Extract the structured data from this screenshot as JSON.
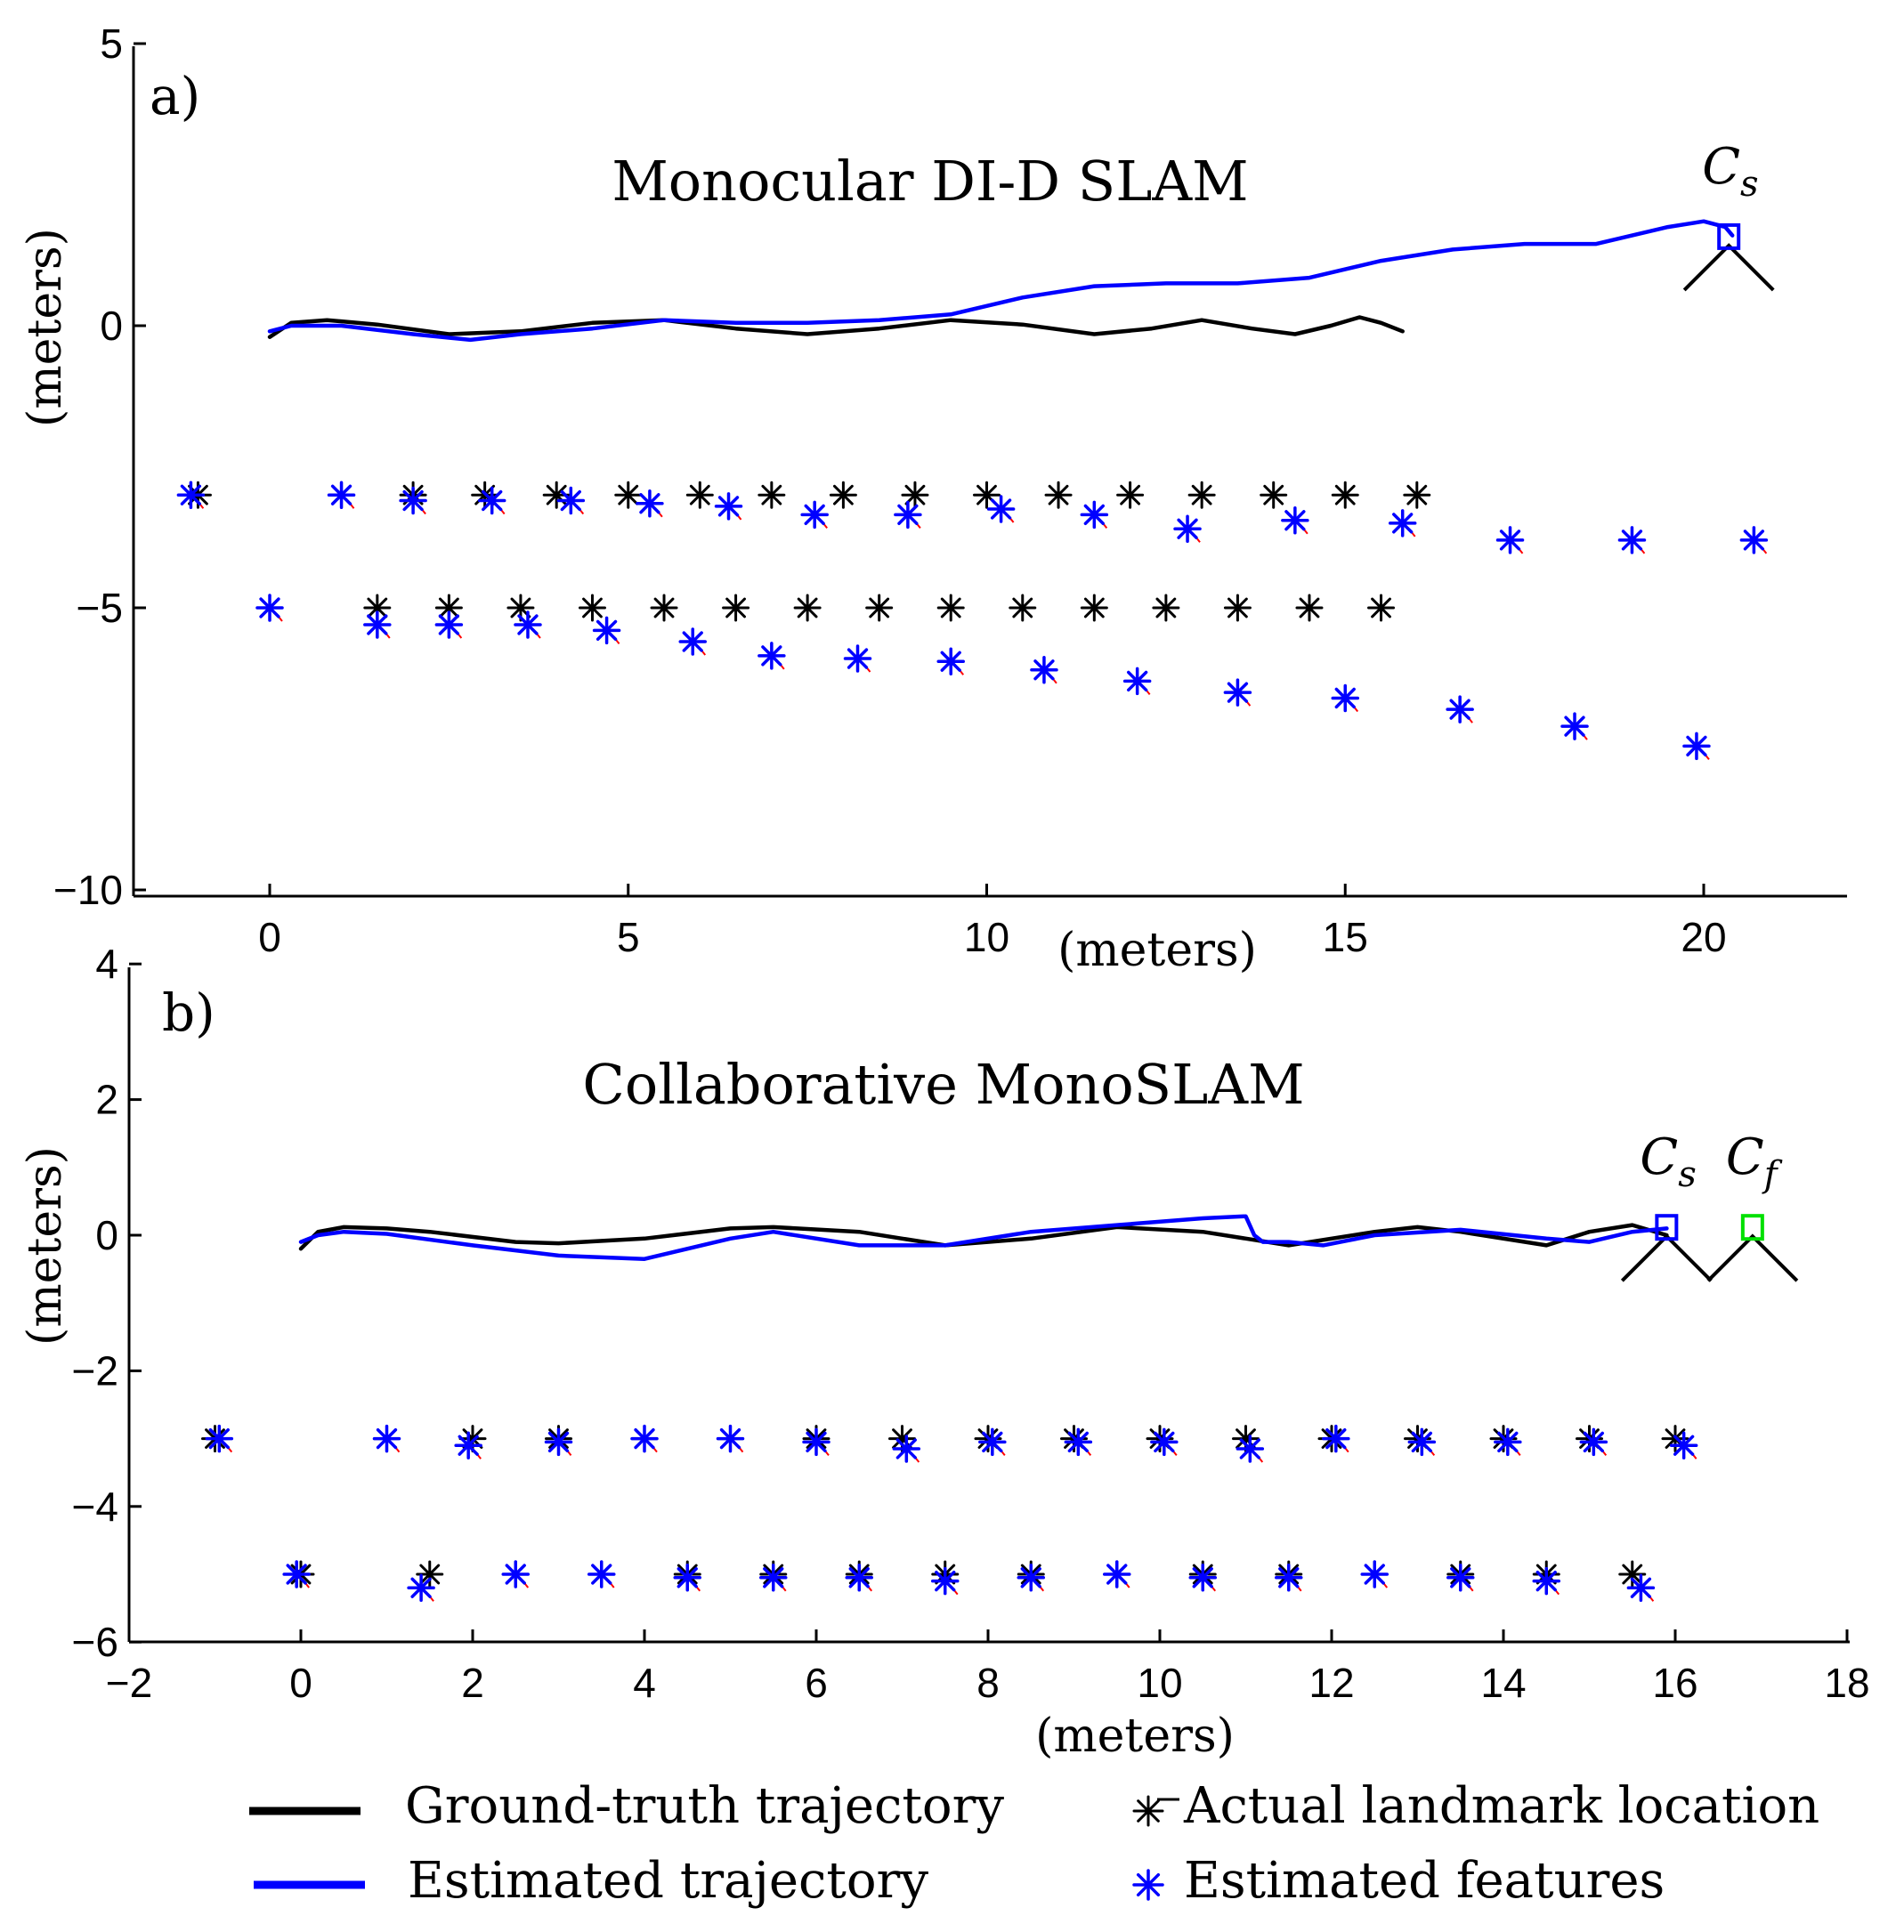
{
  "legend": {
    "ground_truth": "Ground-truth trajectory",
    "estimated_trajectory": "Estimated trajectory",
    "actual_landmark": "Actual landmark location",
    "estimated_features": "Estimated features"
  },
  "colors": {
    "ground_truth": "#000000",
    "estimated": "#0000ff",
    "camera_start": "#0000ff",
    "camera_final": "#00e000",
    "error_marker": "#ff0000"
  },
  "chart_data": [
    {
      "type": "scatter",
      "panel_label": "a)",
      "title": "Monocular DI-D SLAM",
      "xlabel": "(meters)",
      "ylabel": "(meters)",
      "xlim": [
        -2,
        22
      ],
      "ylim": [
        -10,
        5
      ],
      "xticks": [
        0,
        5,
        10,
        15,
        20
      ],
      "yticks": [
        -10,
        -5,
        0,
        5
      ],
      "grid": false,
      "series": [
        {
          "name": "Ground-truth trajectory",
          "kind": "line",
          "color": "#000000",
          "x": [
            0,
            0.3,
            0.8,
            1.5,
            2.5,
            3.5,
            4.5,
            5.5,
            6.5,
            7.5,
            8.5,
            9.5,
            10.5,
            11.5,
            12.3,
            13.0,
            13.7,
            14.3,
            14.8,
            15.2,
            15.5,
            15.8
          ],
          "y": [
            -0.2,
            0.05,
            0.1,
            0.02,
            -0.15,
            -0.1,
            0.05,
            0.1,
            -0.05,
            -0.15,
            -0.05,
            0.1,
            0.02,
            -0.15,
            -0.05,
            0.1,
            -0.05,
            -0.15,
            0.0,
            0.15,
            0.05,
            -0.1
          ]
        },
        {
          "name": "Estimated trajectory",
          "kind": "line",
          "color": "#0000ff",
          "x": [
            0,
            0.3,
            1.0,
            2.0,
            2.8,
            3.5,
            4.5,
            5.5,
            6.5,
            7.5,
            8.5,
            9.5,
            10.5,
            11.5,
            12.5,
            13.5,
            14.5,
            15.5,
            16.5,
            17.5,
            18.5,
            19.5,
            20.0,
            20.3,
            20.4
          ],
          "y": [
            -0.1,
            0.0,
            0.0,
            -0.15,
            -0.25,
            -0.15,
            -0.05,
            0.1,
            0.05,
            0.05,
            0.1,
            0.2,
            0.5,
            0.7,
            0.75,
            0.75,
            0.85,
            1.15,
            1.35,
            1.45,
            1.45,
            1.75,
            1.85,
            1.75,
            1.6
          ]
        },
        {
          "name": "Actual landmark location",
          "kind": "marker",
          "color": "#000000",
          "points": [
            [
              -1,
              -3
            ],
            [
              1,
              -3
            ],
            [
              2,
              -3
            ],
            [
              3,
              -3
            ],
            [
              4,
              -3
            ],
            [
              5,
              -3
            ],
            [
              6,
              -3
            ],
            [
              7,
              -3
            ],
            [
              8,
              -3
            ],
            [
              9,
              -3
            ],
            [
              10,
              -3
            ],
            [
              11,
              -3
            ],
            [
              12,
              -3
            ],
            [
              13,
              -3
            ],
            [
              14,
              -3
            ],
            [
              15,
              -3
            ],
            [
              16,
              -3
            ],
            [
              0,
              -5
            ],
            [
              1.5,
              -5
            ],
            [
              2.5,
              -5
            ],
            [
              3.5,
              -5
            ],
            [
              4.5,
              -5
            ],
            [
              5.5,
              -5
            ],
            [
              6.5,
              -5
            ],
            [
              7.5,
              -5
            ],
            [
              8.5,
              -5
            ],
            [
              9.5,
              -5
            ],
            [
              10.5,
              -5
            ],
            [
              11.5,
              -5
            ],
            [
              12.5,
              -5
            ],
            [
              13.5,
              -5
            ],
            [
              14.5,
              -5
            ],
            [
              15.5,
              -5
            ]
          ]
        },
        {
          "name": "Estimated features",
          "kind": "marker",
          "color": "#0000ff",
          "points": [
            [
              -1.1,
              -3.0
            ],
            [
              1.0,
              -3.0
            ],
            [
              2.0,
              -3.1
            ],
            [
              3.1,
              -3.1
            ],
            [
              4.2,
              -3.1
            ],
            [
              5.3,
              -3.15
            ],
            [
              6.4,
              -3.2
            ],
            [
              7.6,
              -3.35
            ],
            [
              8.9,
              -3.35
            ],
            [
              10.2,
              -3.25
            ],
            [
              11.5,
              -3.35
            ],
            [
              12.8,
              -3.6
            ],
            [
              14.3,
              -3.45
            ],
            [
              15.8,
              -3.5
            ],
            [
              17.3,
              -3.8
            ],
            [
              19.0,
              -3.8
            ],
            [
              20.7,
              -3.8
            ],
            [
              0.0,
              -5.0
            ],
            [
              1.5,
              -5.3
            ],
            [
              2.5,
              -5.3
            ],
            [
              3.6,
              -5.3
            ],
            [
              4.7,
              -5.4
            ],
            [
              5.9,
              -5.6
            ],
            [
              7.0,
              -5.85
            ],
            [
              8.2,
              -5.9
            ],
            [
              9.5,
              -5.95
            ],
            [
              10.8,
              -6.1
            ],
            [
              12.1,
              -6.3
            ],
            [
              13.5,
              -6.5
            ],
            [
              15.0,
              -6.6
            ],
            [
              16.6,
              -6.8
            ],
            [
              18.2,
              -7.1
            ],
            [
              19.9,
              -7.45
            ]
          ]
        }
      ],
      "cameras": [
        {
          "label": "C",
          "subscript": "s",
          "x": 20.35,
          "y": 1.5,
          "color": "#0000ff"
        }
      ]
    },
    {
      "type": "scatter",
      "panel_label": "b)",
      "title": "Collaborative MonoSLAM",
      "xlabel": "(meters)",
      "ylabel": "(meters)",
      "xlim": [
        -2,
        18
      ],
      "ylim": [
        -6,
        4
      ],
      "xticks": [
        -2,
        0,
        2,
        4,
        6,
        8,
        10,
        12,
        14,
        16,
        18
      ],
      "xtick_labels": [
        "−2",
        "0",
        "2",
        "4",
        "6",
        "8",
        "10",
        "12",
        "14",
        "16",
        "18"
      ],
      "yticks": [
        -6,
        -4,
        -2,
        0,
        2,
        4
      ],
      "ytick_labels": [
        "−6",
        "−4",
        "−2",
        "0",
        "2",
        "4"
      ],
      "grid": false,
      "series": [
        {
          "name": "Ground-truth trajectory",
          "kind": "line",
          "color": "#000000",
          "x": [
            0,
            0.2,
            0.5,
            1.0,
            1.5,
            2.5,
            3.0,
            4.0,
            5.0,
            5.5,
            6.5,
            7.5,
            8.5,
            9.5,
            10.5,
            11.5,
            12.5,
            13.0,
            13.5,
            14.5,
            15.0,
            15.5,
            15.9
          ],
          "y": [
            -0.2,
            0.05,
            0.12,
            0.1,
            0.05,
            -0.1,
            -0.12,
            -0.05,
            0.1,
            0.12,
            0.05,
            -0.15,
            -0.05,
            0.12,
            0.05,
            -0.15,
            0.05,
            0.12,
            0.05,
            -0.15,
            0.05,
            0.15,
            0.0
          ]
        },
        {
          "name": "Estimated trajectory",
          "kind": "line",
          "color": "#0000ff",
          "x": [
            0,
            0.2,
            0.5,
            1.0,
            2.0,
            3.0,
            4.0,
            5.0,
            5.5,
            6.5,
            7.5,
            8.5,
            9.5,
            10.5,
            11.0,
            11.1,
            11.2,
            11.5,
            11.9,
            12.5,
            13.5,
            14.5,
            15.0,
            15.5,
            15.9
          ],
          "y": [
            -0.1,
            0.0,
            0.05,
            0.02,
            -0.15,
            -0.3,
            -0.35,
            -0.05,
            0.05,
            -0.15,
            -0.15,
            0.05,
            0.15,
            0.25,
            0.28,
            0.0,
            -0.1,
            -0.1,
            -0.15,
            0.0,
            0.08,
            -0.05,
            -0.1,
            0.05,
            0.1
          ]
        },
        {
          "name": "Actual landmark location",
          "kind": "marker",
          "color": "#000000",
          "points": [
            [
              -1,
              -3
            ],
            [
              1,
              -3
            ],
            [
              2,
              -3
            ],
            [
              3,
              -3
            ],
            [
              4,
              -3
            ],
            [
              5,
              -3
            ],
            [
              6,
              -3
            ],
            [
              7,
              -3
            ],
            [
              8,
              -3
            ],
            [
              9,
              -3
            ],
            [
              10,
              -3
            ],
            [
              11,
              -3
            ],
            [
              12,
              -3
            ],
            [
              13,
              -3
            ],
            [
              14,
              -3
            ],
            [
              15,
              -3
            ],
            [
              16,
              -3
            ],
            [
              0,
              -5
            ],
            [
              1.5,
              -5
            ],
            [
              2.5,
              -5
            ],
            [
              3.5,
              -5
            ],
            [
              4.5,
              -5
            ],
            [
              5.5,
              -5
            ],
            [
              6.5,
              -5
            ],
            [
              7.5,
              -5
            ],
            [
              8.5,
              -5
            ],
            [
              9.5,
              -5
            ],
            [
              10.5,
              -5
            ],
            [
              11.5,
              -5
            ],
            [
              12.5,
              -5
            ],
            [
              13.5,
              -5
            ],
            [
              14.5,
              -5
            ],
            [
              15.5,
              -5
            ]
          ]
        },
        {
          "name": "Estimated features",
          "kind": "marker",
          "color": "#0000ff",
          "points": [
            [
              -0.95,
              -3.0
            ],
            [
              1.0,
              -3.0
            ],
            [
              1.95,
              -3.1
            ],
            [
              3.0,
              -3.05
            ],
            [
              4.0,
              -3.0
            ],
            [
              5.0,
              -3.0
            ],
            [
              6.0,
              -3.05
            ],
            [
              7.05,
              -3.15
            ],
            [
              8.05,
              -3.05
            ],
            [
              9.05,
              -3.05
            ],
            [
              10.05,
              -3.05
            ],
            [
              11.05,
              -3.15
            ],
            [
              12.05,
              -3.0
            ],
            [
              13.05,
              -3.05
            ],
            [
              14.05,
              -3.05
            ],
            [
              15.05,
              -3.05
            ],
            [
              16.1,
              -3.1
            ],
            [
              -0.05,
              -5.0
            ],
            [
              1.4,
              -5.2
            ],
            [
              2.5,
              -5.0
            ],
            [
              3.5,
              -5.0
            ],
            [
              4.5,
              -5.05
            ],
            [
              5.5,
              -5.05
            ],
            [
              6.5,
              -5.05
            ],
            [
              7.5,
              -5.1
            ],
            [
              8.5,
              -5.05
            ],
            [
              9.5,
              -5.0
            ],
            [
              10.5,
              -5.05
            ],
            [
              11.5,
              -5.05
            ],
            [
              12.5,
              -5.0
            ],
            [
              13.5,
              -5.05
            ],
            [
              14.5,
              -5.1
            ],
            [
              15.6,
              -5.2
            ]
          ]
        }
      ],
      "cameras": [
        {
          "label": "C",
          "subscript": "s",
          "x": 15.9,
          "y": 0.05,
          "color": "#0000ff"
        },
        {
          "label": "C",
          "subscript": "f",
          "x": 16.9,
          "y": 0.05,
          "color": "#00e000"
        }
      ]
    }
  ]
}
